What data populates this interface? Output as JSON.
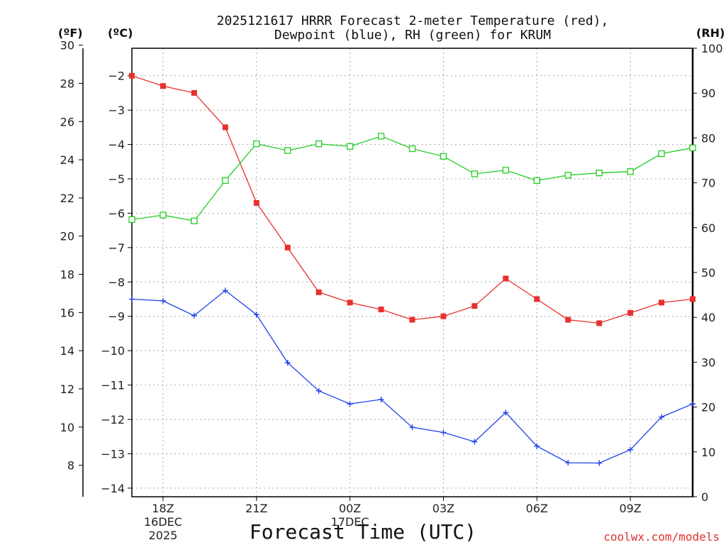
{
  "chart_data": {
    "type": "line",
    "title_lines": [
      "2025121617 HRRR Forecast 2-meter Temperature (red),",
      "Dewpoint (blue), RH (green) for KRUM"
    ],
    "units": {
      "fahrenheit": "(ºF)",
      "celsius": "(ºC)",
      "rh": "(RH)"
    },
    "xlabel": "Forecast Time (UTC)",
    "credit": "coolwx.com/models",
    "x_hours": [
      17,
      18,
      19,
      20,
      21,
      22,
      23,
      24,
      25,
      26,
      27,
      28,
      29,
      30,
      31,
      32,
      33,
      34,
      35
    ],
    "x_ticks": [
      {
        "hour": 18,
        "lines": [
          "18Z",
          "16DEC",
          "2025"
        ]
      },
      {
        "hour": 21,
        "lines": [
          "21Z"
        ]
      },
      {
        "hour": 24,
        "lines": [
          "00Z",
          "17DEC"
        ]
      },
      {
        "hour": 27,
        "lines": [
          "03Z"
        ]
      },
      {
        "hour": 30,
        "lines": [
          "06Z"
        ]
      },
      {
        "hour": 33,
        "lines": [
          "09Z"
        ]
      }
    ],
    "xlim": [
      17,
      35
    ],
    "celsius_range": [
      -14.25,
      -1.2
    ],
    "celsius_ticks": [
      -2,
      -3,
      -4,
      -5,
      -6,
      -7,
      -8,
      -9,
      -10,
      -11,
      -12,
      -13,
      -14
    ],
    "fahrenheit_ticks": [
      30,
      28,
      26,
      24,
      22,
      20,
      18,
      16,
      14,
      12,
      10,
      8
    ],
    "rh_range": [
      0,
      100
    ],
    "rh_ticks": [
      100,
      90,
      80,
      70,
      60,
      50,
      40,
      30,
      20,
      10,
      0
    ],
    "series": [
      {
        "name": "Temperature",
        "color": "#e83030",
        "marker": "filled-square",
        "axis": "celsius",
        "values": [
          -2.0,
          -2.3,
          -2.5,
          -3.5,
          -5.7,
          -7.0,
          -8.3,
          -8.6,
          -8.8,
          -9.1,
          -9.0,
          -8.7,
          -7.9,
          -8.5,
          -9.1,
          -9.2,
          -8.9,
          -8.6,
          -8.5
        ]
      },
      {
        "name": "Dewpoint",
        "color": "#2040e8",
        "marker": "plus",
        "axis": "celsius",
        "values": [
          -8.5,
          -8.55,
          -8.98,
          -8.25,
          -8.95,
          -10.35,
          -11.17,
          -11.55,
          -11.42,
          -12.23,
          -12.38,
          -12.65,
          -11.8,
          -12.78,
          -13.26,
          -13.27,
          -12.88,
          -11.93,
          -11.55
        ]
      },
      {
        "name": "RH",
        "color": "#22cc22",
        "marker": "open-square",
        "axis": "rh",
        "values": [
          61.8,
          62.8,
          61.5,
          70.5,
          78.7,
          77.2,
          78.7,
          78.1,
          80.4,
          77.6,
          75.9,
          72.0,
          72.8,
          70.5,
          71.7,
          72.2,
          72.5,
          76.5,
          77.8
        ]
      }
    ]
  }
}
